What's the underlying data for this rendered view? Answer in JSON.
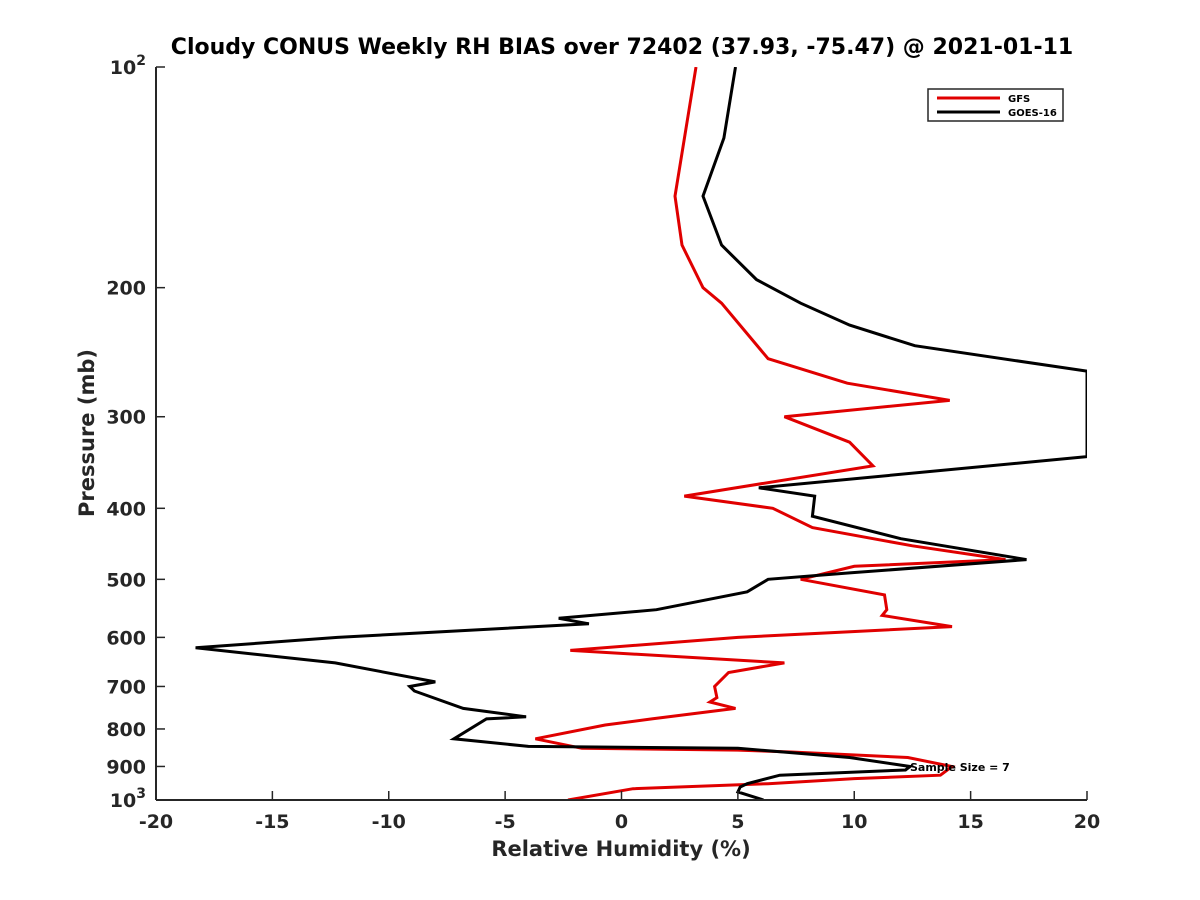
{
  "chart_data": {
    "type": "line",
    "title": "Cloudy CONUS Weekly RH BIAS over 72402 (37.93, -75.47) @ 2021-01-11",
    "xlabel": "Relative Humidity (%)",
    "ylabel": "Pressure (mb)",
    "xlim": [
      -20,
      20
    ],
    "ylim": [
      100,
      1000
    ],
    "y_scale": "log",
    "y_reversed": true,
    "x_ticks": [
      -20,
      -15,
      -10,
      -5,
      0,
      5,
      10,
      15,
      20
    ],
    "x_tick_labels": [
      "-20",
      "-15",
      "-10",
      "-5",
      "0",
      "5",
      "10",
      "15",
      "20"
    ],
    "y_ticks": [
      100,
      200,
      300,
      400,
      500,
      600,
      700,
      800,
      900,
      1000
    ],
    "y_tick_labels": [
      {
        "base": "10",
        "sup": "2"
      },
      {
        "base": "200",
        "sup": ""
      },
      {
        "base": "300",
        "sup": ""
      },
      {
        "base": "400",
        "sup": ""
      },
      {
        "base": "500",
        "sup": ""
      },
      {
        "base": "600",
        "sup": ""
      },
      {
        "base": "700",
        "sup": ""
      },
      {
        "base": "800",
        "sup": ""
      },
      {
        "base": "900",
        "sup": ""
      },
      {
        "base": "10",
        "sup": "3"
      }
    ],
    "grid": false,
    "legend_position": "top-right",
    "annotation": "Sample Size = 7",
    "series": [
      {
        "name": "GFS",
        "color": "#e00000",
        "points": [
          {
            "x": 3.2,
            "y": 100
          },
          {
            "x": 2.3,
            "y": 150
          },
          {
            "x": 2.6,
            "y": 175
          },
          {
            "x": 3.5,
            "y": 200
          },
          {
            "x": 4.3,
            "y": 210
          },
          {
            "x": 6.3,
            "y": 250
          },
          {
            "x": 9.7,
            "y": 270
          },
          {
            "x": 14.1,
            "y": 285
          },
          {
            "x": 7.0,
            "y": 300
          },
          {
            "x": 9.8,
            "y": 325
          },
          {
            "x": 10.8,
            "y": 350
          },
          {
            "x": 2.7,
            "y": 385
          },
          {
            "x": 6.5,
            "y": 400
          },
          {
            "x": 8.2,
            "y": 425
          },
          {
            "x": 12.5,
            "y": 450
          },
          {
            "x": 16.5,
            "y": 470
          },
          {
            "x": 10.0,
            "y": 480
          },
          {
            "x": 7.7,
            "y": 500
          },
          {
            "x": 11.3,
            "y": 525
          },
          {
            "x": 11.4,
            "y": 550
          },
          {
            "x": 11.2,
            "y": 560
          },
          {
            "x": 14.2,
            "y": 580
          },
          {
            "x": 5.0,
            "y": 600
          },
          {
            "x": -2.2,
            "y": 625
          },
          {
            "x": 7.0,
            "y": 650
          },
          {
            "x": 4.6,
            "y": 670
          },
          {
            "x": 4.0,
            "y": 700
          },
          {
            "x": 4.1,
            "y": 725
          },
          {
            "x": 3.8,
            "y": 735
          },
          {
            "x": 4.9,
            "y": 750
          },
          {
            "x": 1.3,
            "y": 775
          },
          {
            "x": -0.7,
            "y": 790
          },
          {
            "x": -3.7,
            "y": 825
          },
          {
            "x": -1.7,
            "y": 850
          },
          {
            "x": 5.0,
            "y": 855
          },
          {
            "x": 7.3,
            "y": 860
          },
          {
            "x": 12.3,
            "y": 875
          },
          {
            "x": 14.2,
            "y": 900
          },
          {
            "x": 13.7,
            "y": 925
          },
          {
            "x": 10.0,
            "y": 935
          },
          {
            "x": 6.3,
            "y": 950
          },
          {
            "x": 0.5,
            "y": 965
          },
          {
            "x": -2.3,
            "y": 1000
          }
        ]
      },
      {
        "name": "GOES-16",
        "color": "#000000",
        "points": [
          {
            "x": 4.9,
            "y": 100
          },
          {
            "x": 4.4,
            "y": 125
          },
          {
            "x": 3.5,
            "y": 150
          },
          {
            "x": 4.3,
            "y": 175
          },
          {
            "x": 5.8,
            "y": 195
          },
          {
            "x": 7.7,
            "y": 210
          },
          {
            "x": 9.8,
            "y": 225
          },
          {
            "x": 12.6,
            "y": 240
          },
          {
            "x": 20.0,
            "y": 260
          },
          {
            "x": 20.0,
            "y": 300
          },
          {
            "x": 20.0,
            "y": 340
          },
          {
            "x": 5.9,
            "y": 375
          },
          {
            "x": 8.3,
            "y": 385
          },
          {
            "x": 8.2,
            "y": 410
          },
          {
            "x": 12.0,
            "y": 440
          },
          {
            "x": 17.4,
            "y": 470
          },
          {
            "x": 9.8,
            "y": 490
          },
          {
            "x": 6.3,
            "y": 500
          },
          {
            "x": 5.4,
            "y": 520
          },
          {
            "x": 1.5,
            "y": 550
          },
          {
            "x": -2.7,
            "y": 565
          },
          {
            "x": -1.4,
            "y": 575
          },
          {
            "x": -12.2,
            "y": 600
          },
          {
            "x": -18.3,
            "y": 620
          },
          {
            "x": -12.3,
            "y": 650
          },
          {
            "x": -8.0,
            "y": 690
          },
          {
            "x": -9.1,
            "y": 700
          },
          {
            "x": -8.9,
            "y": 710
          },
          {
            "x": -6.8,
            "y": 750
          },
          {
            "x": -4.1,
            "y": 770
          },
          {
            "x": -5.8,
            "y": 775
          },
          {
            "x": -7.2,
            "y": 825
          },
          {
            "x": -4.0,
            "y": 845
          },
          {
            "x": 5.0,
            "y": 850
          },
          {
            "x": 9.8,
            "y": 875
          },
          {
            "x": 12.4,
            "y": 900
          },
          {
            "x": 12.2,
            "y": 910
          },
          {
            "x": 6.8,
            "y": 925
          },
          {
            "x": 5.4,
            "y": 950
          },
          {
            "x": 5.1,
            "y": 960
          },
          {
            "x": 5.0,
            "y": 975
          },
          {
            "x": 6.1,
            "y": 1000
          }
        ]
      }
    ]
  }
}
